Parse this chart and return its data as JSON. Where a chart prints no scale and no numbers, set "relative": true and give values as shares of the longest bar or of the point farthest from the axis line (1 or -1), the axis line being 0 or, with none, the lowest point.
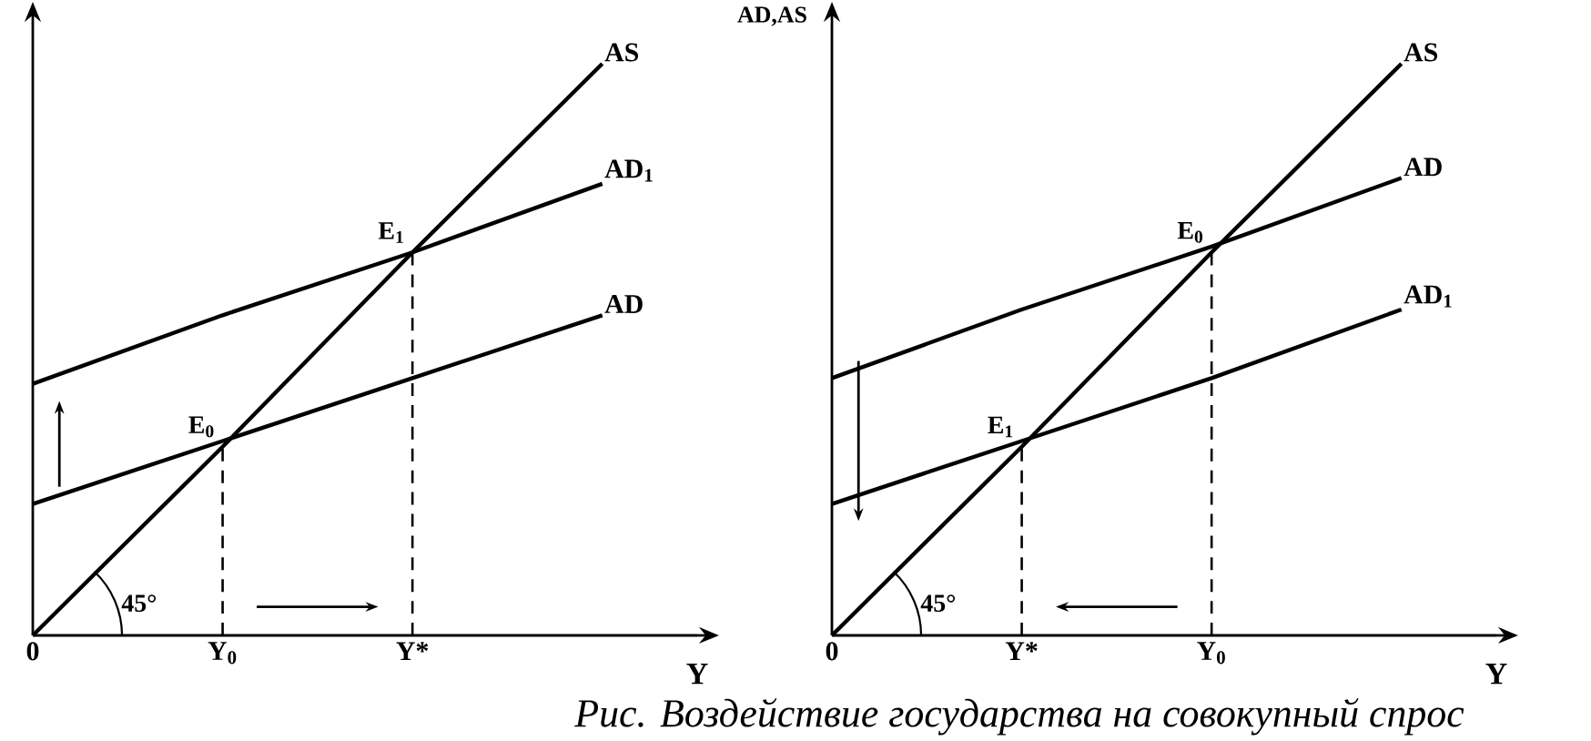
{
  "chart_data": [
    {
      "type": "line",
      "relative": true,
      "tick_labels": "x",
      "xlabel": "Y",
      "categories": [
        "0",
        "Y$_{0}$",
        "Y*",
        null
      ],
      "series": [
        {
          "name": "AS",
          "color": "#000000",
          "values": [
            0,
            0.33,
            0.67,
            1
          ]
        },
        {
          "name": "AD",
          "color": "#000000",
          "values": [
            0.23,
            0.34,
            0.45,
            0.56
          ]
        },
        {
          "name": "AD$_{1}$",
          "color": "#000000",
          "values": [
            0.44,
            0.56,
            0.67,
            0.79
          ]
        }
      ],
      "ref_lines": [
        {
          "axis": "x",
          "value": "Y$_{0}$",
          "line_style": "dashed",
          "color": "#000000"
        },
        {
          "axis": "x",
          "value": "Y*",
          "line_style": "dashed",
          "color": "#000000"
        }
      ],
      "annotations": [
        {
          "text": "E$_{0}$",
          "x": "Y$_{0}$",
          "y": 0.33
        },
        {
          "text": "E$_{1}$",
          "x": "Y*",
          "y": 0.67
        },
        "45°"
      ]
    },
    {
      "type": "line",
      "relative": true,
      "tick_labels": "x",
      "xlabel": "Y",
      "ylabel": "AD,AS",
      "categories": [
        "0",
        "Y*",
        "Y$_{0}$",
        null
      ],
      "series": [
        {
          "name": "AS",
          "color": "#000000",
          "values": [
            0,
            0.33,
            0.67,
            1
          ]
        },
        {
          "name": "AD",
          "color": "#000000",
          "values": [
            0.45,
            0.57,
            0.68,
            0.8
          ]
        },
        {
          "name": "AD$_{1}$",
          "color": "#000000",
          "values": [
            0.23,
            0.34,
            0.45,
            0.57
          ]
        }
      ],
      "ref_lines": [
        {
          "axis": "x",
          "value": "Y$_{0}$",
          "line_style": "dashed",
          "color": "#000000"
        },
        {
          "axis": "x",
          "value": "Y*",
          "line_style": "dashed",
          "color": "#000000"
        }
      ],
      "annotations": [
        {
          "text": "E$_{0}$",
          "x": "Y$_{0}$",
          "y": 0.67
        },
        {
          "text": "E$_{1}$",
          "x": "Y*",
          "y": 0.33
        },
        "45°",
        "Рис. Воздействие государства на совокупный спрос"
      ]
    }
  ]
}
